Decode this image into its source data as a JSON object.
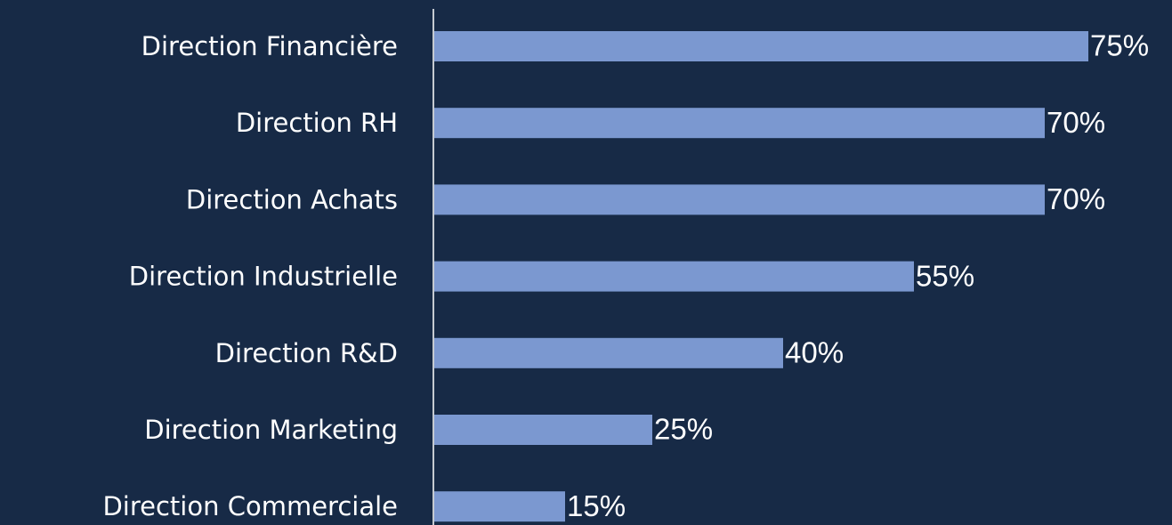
{
  "chart_data": {
    "type": "bar",
    "orientation": "horizontal",
    "categories": [
      "Direction Financière",
      "Direction RH",
      "Direction Achats",
      "Direction Industrielle",
      "Direction R&D",
      "Direction Marketing",
      "Direction Commerciale"
    ],
    "values": [
      75,
      70,
      70,
      55,
      40,
      25,
      15
    ],
    "value_labels": [
      "75%",
      "70%",
      "70%",
      "55%",
      "40%",
      "25%",
      "15%"
    ],
    "color": "#7b98d0"
  }
}
